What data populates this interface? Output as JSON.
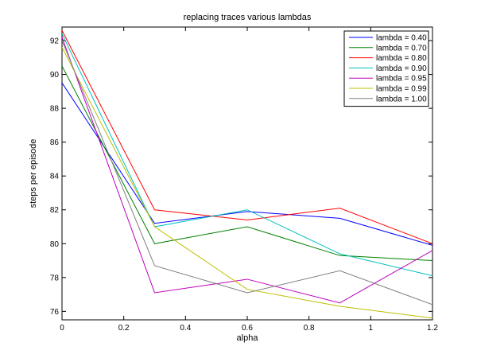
{
  "chart_data": {
    "type": "line",
    "title": "replacing traces various lambdas",
    "xlabel": "alpha",
    "ylabel": "steps per episode",
    "xlim": [
      0,
      1.2
    ],
    "ylim": [
      75.5,
      92.8
    ],
    "xticks": [
      "0",
      "0.2",
      "0.4",
      "0.6",
      "0.8",
      "1",
      "1.2"
    ],
    "yticks": [
      "76",
      "78",
      "80",
      "82",
      "84",
      "86",
      "88",
      "90",
      "92"
    ],
    "grid": false,
    "legend_position": "top-right",
    "x": [
      0,
      0.3,
      0.6,
      0.9,
      1.2
    ],
    "series": [
      {
        "name": "lambda = 0.40",
        "color": "#0000ff",
        "values": [
          89.5,
          81.2,
          81.9,
          81.5,
          79.9
        ]
      },
      {
        "name": "lambda = 0.70",
        "color": "#008000",
        "values": [
          90.5,
          80.0,
          81.0,
          79.3,
          79.0
        ]
      },
      {
        "name": "lambda = 0.80",
        "color": "#ff0000",
        "values": [
          92.6,
          82.0,
          81.4,
          82.1,
          80.0
        ]
      },
      {
        "name": "lambda = 0.90",
        "color": "#00bfbf",
        "values": [
          92.4,
          81.0,
          82.0,
          79.4,
          78.1
        ]
      },
      {
        "name": "lambda = 0.95",
        "color": "#bf00bf",
        "values": [
          92.2,
          77.1,
          77.9,
          76.5,
          79.6
        ]
      },
      {
        "name": "lambda = 0.99",
        "color": "#bfbf00",
        "values": [
          91.6,
          81.0,
          77.3,
          76.3,
          75.6
        ]
      },
      {
        "name": "lambda = 1.00",
        "color": "#808080",
        "values": [
          92.0,
          78.7,
          77.1,
          78.4,
          76.4
        ]
      }
    ]
  }
}
